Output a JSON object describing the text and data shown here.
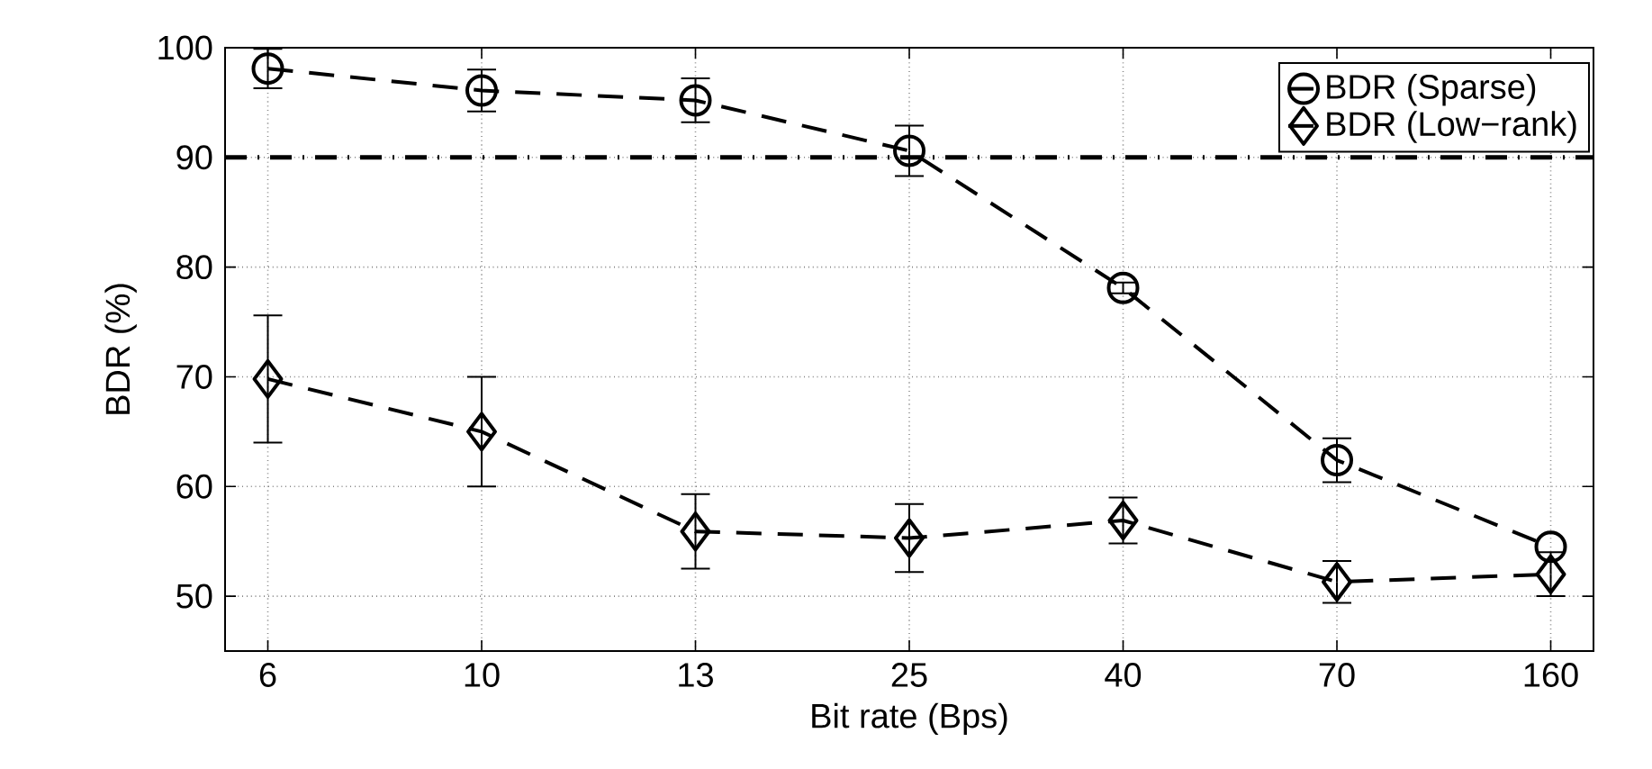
{
  "chart_data": {
    "type": "line",
    "xlabel": "Bit rate (Bps)",
    "ylabel": "BDR (%)",
    "categories": [
      "6",
      "10",
      "13",
      "25",
      "40",
      "70",
      "160"
    ],
    "ylim": [
      45,
      100
    ],
    "yticks": [
      50,
      60,
      70,
      80,
      90,
      100
    ],
    "series": [
      {
        "name": "BDR (Sparse)",
        "color": "#000000",
        "marker": "circle",
        "values": [
          98.1,
          96.1,
          95.2,
          90.6,
          78.1,
          62.4,
          54.5
        ],
        "errors": [
          1.8,
          1.9,
          2.0,
          2.3,
          0.5,
          2.0,
          null
        ]
      },
      {
        "name": "BDR (Low−rank)",
        "color": "#000000",
        "marker": "diamond",
        "values": [
          69.8,
          65.0,
          55.9,
          55.3,
          56.9,
          51.3,
          52.0
        ],
        "errors": [
          5.8,
          5.0,
          3.4,
          3.1,
          2.1,
          1.9,
          2.0
        ]
      }
    ],
    "ref_lines": [
      {
        "axis": "y",
        "value": 90,
        "line_style": "dashed"
      }
    ],
    "line_style": "dashed",
    "grid": true,
    "legend": "top right"
  }
}
